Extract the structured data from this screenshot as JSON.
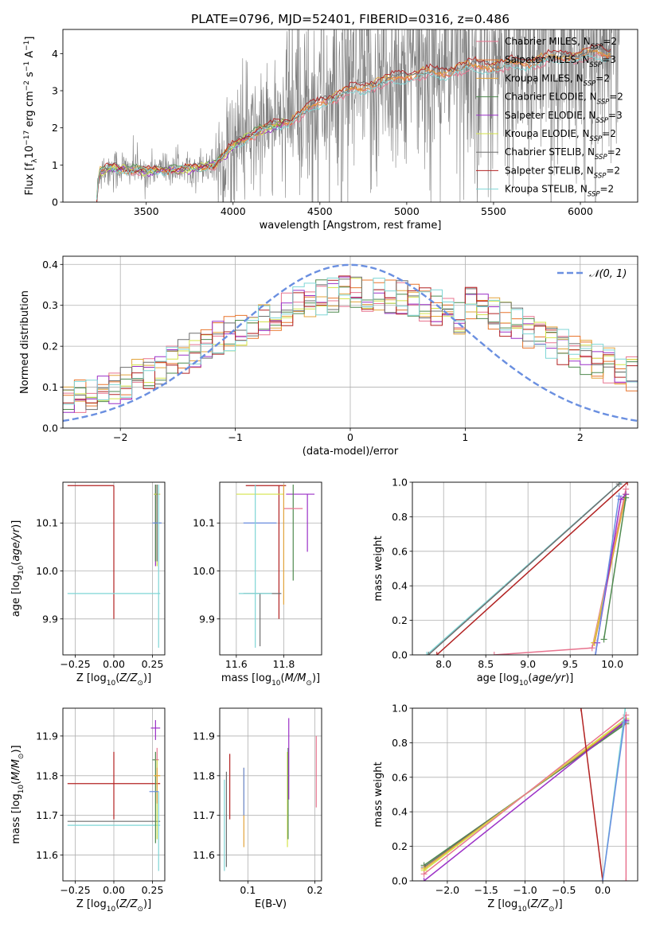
{
  "title": "PLATE=0796, MJD=52401, FIBERID=0316, z=0.486",
  "colors": {
    "Chabrier MILES": "#e8748f",
    "Salpeter MILES": "#e8742b",
    "Kroupa MILES": "#e3a43b",
    "Chabrier ELODIE": "#4f8a4f",
    "Salpeter ELODIE": "#9b30c7",
    "Kroupa ELODIE": "#d4e34a",
    "Chabrier STELIB": "#6e6e6e",
    "Salpeter STELIB": "#b22222",
    "Kroupa STELIB": "#7fd6d6",
    "data": "#808080",
    "normal": "#6a8fe0"
  },
  "chart_data": [
    {
      "type": "line",
      "panel": "spectrum",
      "xlabel": "wavelength [Angstrom, rest frame]",
      "ylabel": "Flux [f_λ 10^-17 erg cm^-2 s^-1 A^-1]",
      "xlim": [
        3020,
        6330
      ],
      "ylim": [
        0,
        4.65
      ],
      "xticks": [
        3500,
        4000,
        4500,
        5000,
        5500,
        6000
      ],
      "yticks": [
        0,
        1,
        2,
        3,
        4
      ],
      "legend_position": "upper-right",
      "legend": [
        {
          "label": "Chabrier MILES, N_SSP=2",
          "base": "Chabrier MILES, N",
          "sub": "SSP",
          "tail": "=2"
        },
        {
          "label": "Salpeter MILES, N_SSP=3",
          "base": "Salpeter MILES, N",
          "sub": "SSP",
          "tail": "=3"
        },
        {
          "label": "Kroupa MILES, N_SSP=2",
          "base": "Kroupa MILES, N",
          "sub": "SSP",
          "tail": "=2"
        },
        {
          "label": "Chabrier ELODIE, N_SSP=2",
          "base": "Chabrier ELODIE, N",
          "sub": "SSP",
          "tail": "=2"
        },
        {
          "label": "Salpeter ELODIE, N_SSP=3",
          "base": "Salpeter ELODIE, N",
          "sub": "SSP",
          "tail": "=3"
        },
        {
          "label": "Kroupa ELODIE, N_SSP=2",
          "base": "Kroupa ELODIE, N",
          "sub": "SSP",
          "tail": "=2"
        },
        {
          "label": "Chabrier STELIB, N_SSP=2",
          "base": "Chabrier STELIB, N",
          "sub": "SSP",
          "tail": "=2"
        },
        {
          "label": "Salpeter STELIB, N_SSP=2",
          "base": "Salpeter STELIB, N",
          "sub": "SSP",
          "tail": "=2"
        },
        {
          "label": "Kroupa STELIB, N_SSP=2",
          "base": "Kroupa STELIB, N",
          "sub": "SSP",
          "tail": "=2"
        }
      ],
      "model_continuum": {
        "x": [
          3215,
          3230,
          3300,
          3400,
          3500,
          3600,
          3700,
          3800,
          3900,
          3950,
          4000,
          4100,
          4200,
          4300,
          4400,
          4500,
          4600,
          4700,
          4800,
          4900,
          5000,
          5100,
          5200,
          5300,
          5400,
          5500,
          5600,
          5700,
          5800,
          5900,
          6000,
          6100,
          6180
        ],
        "y": [
          0.05,
          0.85,
          0.95,
          0.9,
          0.85,
          0.9,
          0.9,
          0.95,
          1.05,
          1.3,
          1.55,
          1.85,
          2.05,
          2.2,
          2.45,
          2.75,
          2.95,
          3.1,
          3.25,
          3.35,
          3.5,
          3.55,
          3.55,
          3.7,
          3.75,
          3.75,
          3.8,
          3.85,
          3.95,
          4.0,
          4.05,
          4.1,
          4.1
        ]
      },
      "data_x_range": [
        3215,
        6230
      ],
      "noise_start": 3900
    },
    {
      "type": "line",
      "panel": "residual-histogram",
      "xlabel": "(data-model)/error",
      "ylabel": "Normed distribution",
      "xlim": [
        -2.5,
        2.5
      ],
      "ylim": [
        0,
        0.42
      ],
      "xticks": [
        -2,
        -1,
        0,
        1,
        2
      ],
      "xticklabels": [
        "−2",
        "−1",
        "0",
        "1",
        "2"
      ],
      "yticks": [
        0.0,
        0.1,
        0.2,
        0.3,
        0.4
      ],
      "grid": true,
      "legend_position": "upper-right",
      "legend": {
        "label": "𝒩(0, 1)"
      },
      "bins": [
        -2.5,
        2.5,
        50
      ]
    },
    {
      "type": "scatter",
      "panel": "age-vs-Z",
      "xlabel": "Z [log10(Z/Z⊙)]",
      "ylabel": "age [log10(age/yr)]",
      "xlim": [
        -0.33,
        0.33
      ],
      "ylim": [
        9.825,
        10.185
      ],
      "xticks": [
        -0.25,
        0.0,
        0.25
      ],
      "xticklabels": [
        "−0.25",
        "0.00",
        "0.25"
      ],
      "yticks": [
        9.9,
        10.0,
        10.1
      ],
      "grid": true,
      "points": [
        {
          "model": "Salpeter STELIB",
          "x": 0.0,
          "xerr": [
            0.3,
            0.0
          ],
          "y": 10.178,
          "yerr": [
            0.278,
            0.0
          ]
        },
        {
          "model": "Kroupa STELIB",
          "x": 0.0,
          "xerr": [
            0.3,
            0.3
          ],
          "y": 9.953,
          "yerr": [
            0.0,
            0.0
          ]
        },
        {
          "model": "Chabrier MILES",
          "x": 0.28,
          "xerr": [
            0.02,
            0.02
          ],
          "y": 10.16,
          "yerr": [
            0.02,
            0.02
          ]
        },
        {
          "model": "Salpeter ELODIE",
          "x": 0.27,
          "xerr": [
            0.01,
            0.01
          ],
          "y": 10.16,
          "yerr": [
            0.15,
            0.02
          ]
        },
        {
          "model": "Chabrier ELODIE",
          "x": 0.27,
          "xerr": [
            0.01,
            0.01
          ],
          "y": 10.16,
          "yerr": [
            0.14,
            0.02
          ]
        },
        {
          "model": "Kroupa ELODIE",
          "x": 0.28,
          "xerr": [
            0.02,
            0.02
          ],
          "y": 10.16,
          "yerr": [
            0.15,
            0.02
          ]
        },
        {
          "model": "Kroupa MILES",
          "x": 0.28,
          "xerr": [
            0.02,
            0.02
          ],
          "y": 10.1,
          "yerr": [
            0.08,
            0.08
          ]
        },
        {
          "model": "Chabrier STELIB",
          "x": 0.28,
          "xerr": [
            0.02,
            0.02
          ],
          "y": 10.1,
          "yerr": [
            0.08,
            0.08
          ]
        },
        {
          "model": "normal-blue",
          "x": 0.28,
          "xerr": [
            0.03,
            0.03
          ],
          "y": 10.1,
          "yerr": [
            0.0,
            0.0
          ]
        },
        {
          "model": "Kroupa STELIB",
          "x": 0.29,
          "xerr": [
            0.0,
            0.0
          ],
          "y": 10.1,
          "yerr": [
            0.26,
            0.08
          ]
        }
      ]
    },
    {
      "type": "scatter",
      "panel": "age-vs-mass",
      "xlabel": "mass [log10(M/M⊙)]",
      "ylabel": "",
      "xlim": [
        11.53,
        11.96
      ],
      "ylim": [
        9.825,
        10.185
      ],
      "xticks": [
        11.6,
        11.8
      ],
      "yticks": [
        9.9,
        10.0,
        10.1
      ],
      "grid": true,
      "points": [
        {
          "model": "Salpeter STELIB",
          "x": 11.78,
          "xerr": [
            0.14,
            0.03
          ],
          "y": 10.178,
          "yerr": [
            0.278,
            0.0
          ]
        },
        {
          "model": "Kroupa ELODIE",
          "x": 11.73,
          "xerr": [
            0.13,
            0.07
          ],
          "y": 10.16,
          "yerr": [
            0.0,
            0.0
          ]
        },
        {
          "model": "Salpeter ELODIE",
          "x": 11.9,
          "xerr": [
            0.09,
            0.03
          ],
          "y": 10.16,
          "yerr": [
            0.12,
            0.0
          ]
        },
        {
          "model": "Chabrier ELODIE",
          "x": 11.84,
          "xerr": [
            0.0,
            0.0
          ],
          "y": 10.16,
          "yerr": [
            0.18,
            0.02
          ]
        },
        {
          "model": "Chabrier MILES",
          "x": 11.84,
          "xerr": [
            0.04,
            0.04
          ],
          "y": 10.13,
          "yerr": [
            0.0,
            0.0
          ]
        },
        {
          "model": "Kroupa MILES",
          "x": 11.8,
          "xerr": [
            0.0,
            0.0
          ],
          "y": 10.1,
          "yerr": [
            0.17,
            0.08
          ]
        },
        {
          "model": "normal-blue",
          "x": 11.7,
          "xerr": [
            0.07,
            0.07
          ],
          "y": 10.1,
          "yerr": [
            0.0,
            0.0
          ]
        },
        {
          "model": "Chabrier STELIB",
          "x": 11.7,
          "xerr": [
            0.07,
            0.09
          ],
          "y": 9.953,
          "yerr": [
            0.11,
            0.0
          ]
        },
        {
          "model": "Kroupa STELIB",
          "x": 11.68,
          "xerr": [
            0.07,
            0.07
          ],
          "y": 9.953,
          "yerr": [
            0.0,
            0.0
          ]
        },
        {
          "model": "Kroupa STELIB",
          "x": 11.68,
          "xerr": [
            0.0,
            0.0
          ],
          "y": 10.1,
          "yerr": [
            0.26,
            0.08
          ]
        }
      ]
    },
    {
      "type": "line",
      "panel": "mass-weight-vs-age",
      "xlabel": "age [log10(age/yr)]",
      "ylabel": "mass weight",
      "xlim": [
        7.63,
        10.3
      ],
      "ylim": [
        0,
        1.0
      ],
      "xticks": [
        8.0,
        8.5,
        9.0,
        9.5,
        10.0
      ],
      "yticks": [
        0.0,
        0.2,
        0.4,
        0.6,
        0.8,
        1.0
      ],
      "grid": true,
      "series": [
        {
          "model": "Kroupa STELIB",
          "x": [
            7.8,
            10.1
          ],
          "y": [
            0.0,
            1.0
          ]
        },
        {
          "model": "Chabrier STELIB",
          "x": [
            7.82,
            10.08
          ],
          "y": [
            0.0,
            0.99
          ]
        },
        {
          "model": "Salpeter STELIB",
          "x": [
            7.92,
            10.18
          ],
          "y": [
            0.0,
            1.0
          ]
        },
        {
          "model": "Chabrier MILES",
          "x": [
            8.6,
            9.76,
            10.16
          ],
          "y": [
            0.0,
            0.04,
            0.96
          ]
        },
        {
          "model": "Kroupa ELODIE",
          "x": [
            9.78,
            10.16
          ],
          "y": [
            0.07,
            0.93
          ]
        },
        {
          "model": "Kroupa MILES",
          "x": [
            9.79,
            10.16
          ],
          "y": [
            0.07,
            0.93
          ]
        },
        {
          "model": "Salpeter ELODIE",
          "x": [
            9.8,
            9.82,
            10.1,
            10.16
          ],
          "y": [
            0.0,
            0.07,
            0.9,
            0.93
          ]
        },
        {
          "model": "Chabrier ELODIE",
          "x": [
            9.9,
            10.16
          ],
          "y": [
            0.09,
            0.91
          ]
        },
        {
          "model": "normal-blue",
          "x": [
            9.8,
            10.08
          ],
          "y": [
            0.0,
            0.92
          ]
        }
      ]
    },
    {
      "type": "scatter",
      "panel": "mass-vs-Z",
      "xlabel": "Z [log10(Z/Z⊙)]",
      "ylabel": "mass [log10(M/M⊙)]",
      "xlim": [
        -0.33,
        0.33
      ],
      "ylim": [
        11.535,
        11.97
      ],
      "xticks": [
        -0.25,
        0.0,
        0.25
      ],
      "xticklabels": [
        "−0.25",
        "0.00",
        "0.25"
      ],
      "yticks": [
        11.6,
        11.7,
        11.8,
        11.9
      ],
      "grid": true,
      "points": [
        {
          "model": "Salpeter STELIB",
          "x": 0.0,
          "xerr": [
            0.3,
            0.3
          ],
          "y": 11.78,
          "yerr": [
            0.09,
            0.08
          ]
        },
        {
          "model": "Chabrier STELIB",
          "x": 0.0,
          "xerr": [
            0.3,
            0.3
          ],
          "y": 11.685,
          "yerr": [
            0.0,
            0.0
          ]
        },
        {
          "model": "Kroupa STELIB",
          "x": 0.0,
          "xerr": [
            0.3,
            0.3
          ],
          "y": 11.675,
          "yerr": [
            0.0,
            0.0
          ]
        },
        {
          "model": "Salpeter ELODIE",
          "x": 0.27,
          "xerr": [
            0.03,
            0.03
          ],
          "y": 11.92,
          "yerr": [
            0.03,
            0.02
          ]
        },
        {
          "model": "Chabrier ELODIE",
          "x": 0.27,
          "xerr": [
            0.02,
            0.02
          ],
          "y": 11.84,
          "yerr": [
            0.21,
            0.02
          ]
        },
        {
          "model": "Chabrier MILES",
          "x": 0.28,
          "xerr": [
            0.01,
            0.01
          ],
          "y": 11.84,
          "yerr": [
            0.1,
            0.03
          ]
        },
        {
          "model": "Kroupa ELODIE",
          "x": 0.28,
          "xerr": [
            0.02,
            0.02
          ],
          "y": 11.8,
          "yerr": [
            0.16,
            0.04
          ]
        },
        {
          "model": "Kroupa MILES",
          "x": 0.28,
          "xerr": [
            0.02,
            0.02
          ],
          "y": 11.8,
          "yerr": [
            0.07,
            0.02
          ]
        },
        {
          "model": "normal-blue",
          "x": 0.26,
          "xerr": [
            0.03,
            0.03
          ],
          "y": 11.76,
          "yerr": [
            0.0,
            0.0
          ]
        },
        {
          "model": "Kroupa STELIB",
          "x": 0.29,
          "xerr": [
            0.0,
            0.0
          ],
          "y": 11.76,
          "yerr": [
            0.2,
            0.0
          ]
        }
      ]
    },
    {
      "type": "scatter",
      "panel": "mass-vs-ebv",
      "xlabel": "E(B-V)",
      "ylabel": "",
      "xlim": [
        0.058,
        0.21
      ],
      "ylim": [
        11.535,
        11.97
      ],
      "xticks": [
        0.1,
        0.2
      ],
      "yticks": [
        11.6,
        11.7,
        11.8,
        11.9
      ],
      "grid": true,
      "points": [
        {
          "model": "Kroupa STELIB",
          "x": 0.065,
          "ylo": 11.56,
          "yhi": 11.79
        },
        {
          "model": "Chabrier STELIB",
          "x": 0.068,
          "ylo": 11.57,
          "yhi": 11.81
        },
        {
          "model": "Salpeter STELIB",
          "x": 0.073,
          "ylo": 11.69,
          "yhi": 11.855
        },
        {
          "model": "Kroupa MILES",
          "x": 0.094,
          "ylo": 11.62,
          "yhi": 11.82
        },
        {
          "model": "normal-blue",
          "x": 0.094,
          "ylo": 11.7,
          "yhi": 11.82
        },
        {
          "model": "Kroupa ELODIE",
          "x": 0.159,
          "ylo": 11.62,
          "yhi": 11.86
        },
        {
          "model": "Chabrier ELODIE",
          "x": 0.16,
          "ylo": 11.64,
          "yhi": 11.87
        },
        {
          "model": "Salpeter ELODIE",
          "x": 0.161,
          "ylo": 11.74,
          "yhi": 11.945
        },
        {
          "model": "Chabrier MILES",
          "x": 0.202,
          "ylo": 11.72,
          "yhi": 11.9
        }
      ]
    },
    {
      "type": "line",
      "panel": "mass-weight-vs-Z",
      "xlabel": "Z [log10(Z/Z⊙)]",
      "ylabel": "mass weight",
      "xlim": [
        -2.45,
        0.45
      ],
      "ylim": [
        0,
        1.0
      ],
      "xticks": [
        -2.0,
        -1.5,
        -1.0,
        -0.5,
        0.0
      ],
      "xticklabels": [
        "−2.0",
        "−1.5",
        "−1.0",
        "−0.5",
        "0.0"
      ],
      "yticks": [
        0.0,
        0.2,
        0.4,
        0.6,
        0.8,
        1.0
      ],
      "grid": true,
      "series": [
        {
          "model": "Chabrier ELODIE",
          "x": [
            -2.3,
            0.3
          ],
          "y": [
            0.09,
            0.91
          ]
        },
        {
          "model": "Chabrier STELIB",
          "x": [
            -2.3,
            0.3
          ],
          "y": [
            0.08,
            0.92
          ]
        },
        {
          "model": "Kroupa MILES",
          "x": [
            -2.3,
            0.3
          ],
          "y": [
            0.07,
            0.93
          ]
        },
        {
          "model": "Kroupa ELODIE",
          "x": [
            -2.3,
            0.3
          ],
          "y": [
            0.06,
            0.94
          ]
        },
        {
          "model": "Chabrier MILES",
          "x": [
            -2.3,
            0.3,
            0.3
          ],
          "y": [
            0.04,
            0.96,
            0.0
          ]
        },
        {
          "model": "Salpeter ELODIE",
          "x": [
            -2.3,
            0.3
          ],
          "y": [
            0.0,
            0.93
          ]
        },
        {
          "model": "Salpeter STELIB",
          "x": [
            -0.28,
            0.0
          ],
          "y": [
            1.0,
            0.0
          ]
        },
        {
          "model": "Kroupa STELIB",
          "x": [
            0.0,
            0.29
          ],
          "y": [
            0.0,
            1.0
          ]
        },
        {
          "model": "normal-blue",
          "x": [
            0.0,
            0.28
          ],
          "y": [
            0.0,
            0.92
          ]
        }
      ]
    }
  ]
}
